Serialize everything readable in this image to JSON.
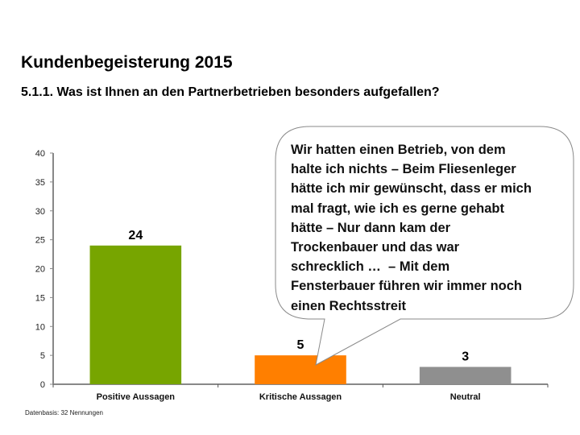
{
  "header": {
    "title": "Kundenbegeisterung 2015",
    "subtitle": "5.1.1. Was ist Ihnen an den Partnerbetrieben besonders aufgefallen?"
  },
  "callout": {
    "lines": [
      "Wir hatten einen Betrieb, von dem",
      "halte ich nichts – Beim Fliesenleger",
      "hätte ich mir gewünscht, dass er mich",
      "mal fragt, wie ich es gerne gehabt",
      "hätte – Nur dann kam der",
      "Trockenbauer und das war",
      "schrecklich …  – Mit dem",
      "Fensterbauer führen wir immer noch",
      "einen Rechtsstreit"
    ],
    "points_to": "Kritische Aussagen"
  },
  "footnote": "Datenbasis: 32 Nennungen",
  "chart_data": {
    "type": "bar",
    "title": "",
    "xlabel": "",
    "ylabel": "",
    "categories": [
      "Positive Aussagen",
      "Kritische Aussagen",
      "Neutral"
    ],
    "values": [
      24,
      5,
      3
    ],
    "data_labels": [
      "24",
      "5",
      "3"
    ],
    "colors": [
      "#77a500",
      "#ff7f00",
      "#8f8f8f"
    ],
    "ylim": [
      0,
      40
    ],
    "yticks": [
      0,
      5,
      10,
      15,
      20,
      25,
      30,
      35,
      40
    ],
    "grid": false,
    "legend": "none"
  }
}
